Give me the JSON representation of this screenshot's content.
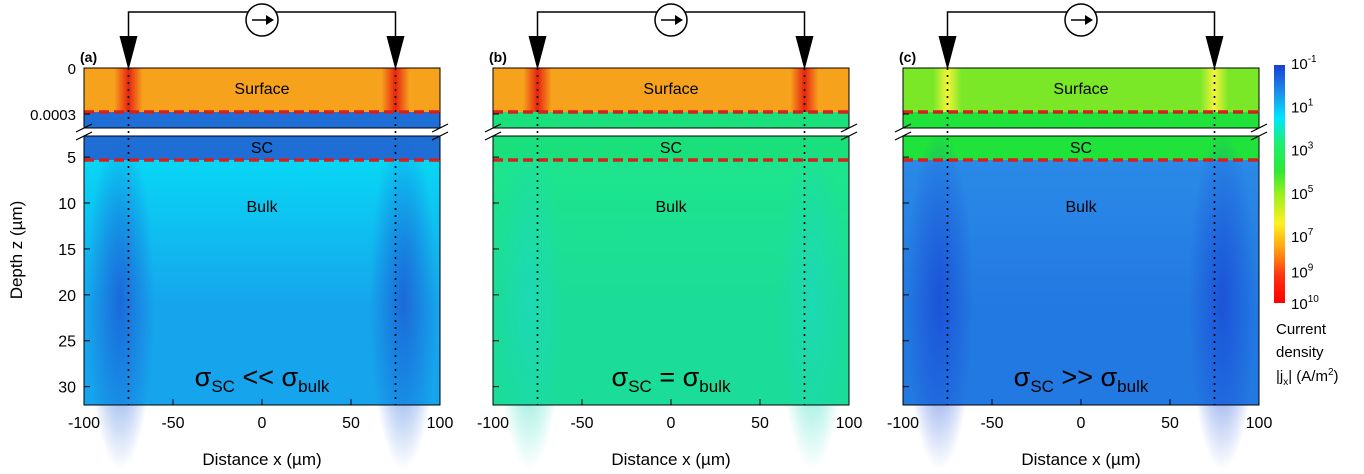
{
  "chart_data": {
    "type": "heatmap",
    "shared": {
      "xlabel": "Distance x (µm)",
      "ylabel": "Depth z (µm)",
      "xlim": [
        -100,
        100
      ],
      "x_ticks": [
        "-100",
        "-50",
        "0",
        "50",
        "100"
      ],
      "x_tick_values": [
        -100,
        -50,
        0,
        50,
        100
      ],
      "y_ticks_top": [
        "0",
        "0.0003"
      ],
      "y_ticks_bottom": [
        "5",
        "10",
        "15",
        "20",
        "25",
        "30"
      ],
      "y_tick_values_bottom": [
        5,
        10,
        15,
        20,
        25,
        30
      ],
      "ylim_bottom": [
        2.7,
        32
      ],
      "electrode_x": [
        -75,
        75
      ]
    },
    "panels": [
      {
        "label": "(a)",
        "regions": {
          "surface": "Surface",
          "sc": "SC",
          "bulk": "Bulk"
        },
        "condition": {
          "left": "σ",
          "left_sub": "SC",
          "op": " << ",
          "right": "σ",
          "right_sub": "bulk"
        },
        "colors": {
          "surface": "#f6a21c",
          "surface_hot": "#e52410",
          "sc": "#1e6ed6",
          "bulk": "#08d7f5",
          "bulk_deep": "#16a4ec",
          "bulk_edge": "#1b63d7"
        }
      },
      {
        "label": "(b)",
        "regions": {
          "surface": "Surface",
          "sc": "SC",
          "bulk": "Bulk"
        },
        "condition": {
          "left": "σ",
          "left_sub": "SC",
          "op": " = ",
          "right": "σ",
          "right_sub": "bulk"
        },
        "colors": {
          "surface": "#f6a21c",
          "surface_hot": "#e52410",
          "sc": "#19e07a",
          "bulk": "#1de58c",
          "bulk_deep": "#1bdc99",
          "bulk_edge": "#1cd9b6"
        }
      },
      {
        "label": "(c)",
        "regions": {
          "surface": "Surface",
          "sc": "SC",
          "bulk": "Bulk"
        },
        "condition": {
          "left": "σ",
          "left_sub": "SC",
          "op": " >> ",
          "right": "σ",
          "right_sub": "bulk"
        },
        "colors": {
          "surface": "#7ae827",
          "surface_hot": "#f3f33a",
          "sc": "#1fe33a",
          "bulk": "#2a8ae7",
          "bulk_deep": "#2379e2",
          "bulk_edge": "#1a4fd6"
        }
      }
    ],
    "colorbar": {
      "ticks": [
        {
          "base": "10",
          "exp": "-1",
          "pos": 0
        },
        {
          "base": "10",
          "exp": "1",
          "pos": 0.1818
        },
        {
          "base": "10",
          "exp": "3",
          "pos": 0.3636
        },
        {
          "base": "10",
          "exp": "5",
          "pos": 0.5454
        },
        {
          "base": "10",
          "exp": "7",
          "pos": 0.7272
        },
        {
          "base": "10",
          "exp": "9",
          "pos": 0.909
        },
        {
          "base": "10",
          "exp": "10",
          "pos": 1
        }
      ],
      "stops": [
        "#1a3fd6",
        "#1b8cea",
        "#00e5ff",
        "#1cf06e",
        "#2ee836",
        "#a6f01e",
        "#fff020",
        "#ff9c10",
        "#ff3010",
        "#ff0000"
      ],
      "label_lines": [
        "Current",
        "density"
      ],
      "unit": {
        "pre": "|j",
        "sub": "x",
        "mid": "| (A/m",
        "sup": "2",
        "post": ")"
      }
    }
  }
}
